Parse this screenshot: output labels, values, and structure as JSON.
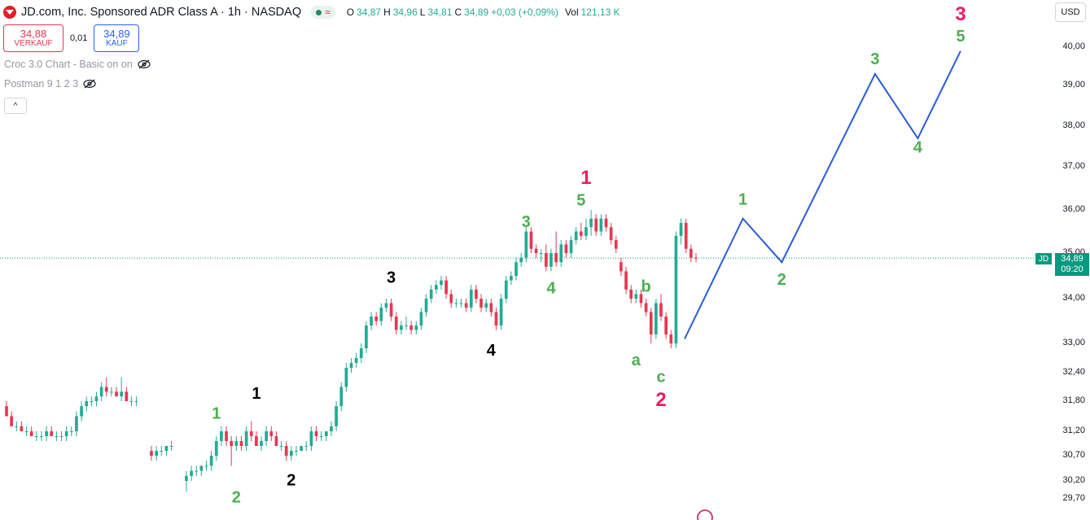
{
  "header": {
    "title": "JD.com, Inc. Sponsored ADR Class A · 1h · NASDAQ",
    "approx_symbol": "≈",
    "ohlc": [
      {
        "k": "O",
        "v": "34,87"
      },
      {
        "k": "H",
        "v": "34,96"
      },
      {
        "k": "L",
        "v": "34,81"
      },
      {
        "k": "C",
        "v": "34,89"
      }
    ],
    "change": "+0,03 (+0,09%)",
    "volume_label": "Vol",
    "volume_value": "121,13 K"
  },
  "trade": {
    "sell_price": "34,88",
    "sell_label": "VERKAUF",
    "spread": "0,01",
    "buy_price": "34,89",
    "buy_label": "KAUF"
  },
  "indicators": [
    {
      "name": "Croc 3.0 Chart - Basic on on"
    },
    {
      "name": "Postman 9 1 2 3"
    }
  ],
  "collapse_symbol": "^",
  "currency": "USD",
  "price_tag": {
    "symbol": "JD",
    "price": "34,89",
    "countdown": "09:20"
  },
  "colors": {
    "up": "#22ab94",
    "down": "#e53850",
    "projection": "#2a5bd7",
    "wave_green": "#4caf50",
    "wave_pink": "#e91e63",
    "wave_black": "#000000",
    "current_price_line": "#089981"
  },
  "chart_data": {
    "type": "candlestick",
    "ylim": [
      29.7,
      40.6
    ],
    "y_tick_labels": [
      "29,70",
      "30,20",
      "30,70",
      "31,20",
      "31,80",
      "32,40",
      "33,00",
      "34,00",
      "35,00",
      "36,00",
      "37,00",
      "38,00",
      "39,00",
      "40,00"
    ],
    "y_ticks": [
      29.7,
      30.2,
      30.7,
      31.2,
      31.8,
      32.4,
      33.0,
      34.0,
      35.0,
      36.0,
      37.0,
      38.0,
      39.0,
      40.0
    ],
    "current_price": 34.89,
    "candles": [
      [
        31.7,
        31.8,
        31.5,
        31.5
      ],
      [
        31.5,
        31.6,
        31.3,
        31.3
      ],
      [
        31.3,
        31.4,
        31.2,
        31.3
      ],
      [
        31.3,
        31.4,
        31.2,
        31.2
      ],
      [
        31.2,
        31.3,
        31.1,
        31.2
      ],
      [
        31.2,
        31.3,
        31.1,
        31.1
      ],
      [
        31.1,
        31.2,
        31.0,
        31.1
      ],
      [
        31.1,
        31.2,
        31.0,
        31.1
      ],
      [
        31.1,
        31.3,
        31.0,
        31.2
      ],
      [
        31.2,
        31.3,
        31.1,
        31.1
      ],
      [
        31.1,
        31.2,
        31.0,
        31.1
      ],
      [
        31.1,
        31.2,
        31.0,
        31.1
      ],
      [
        31.1,
        31.3,
        31.0,
        31.2
      ],
      [
        31.2,
        31.3,
        31.1,
        31.2
      ],
      [
        31.2,
        31.6,
        31.1,
        31.5
      ],
      [
        31.5,
        31.8,
        31.4,
        31.7
      ],
      [
        31.7,
        31.9,
        31.6,
        31.8
      ],
      [
        31.8,
        31.9,
        31.7,
        31.8
      ],
      [
        31.8,
        32.0,
        31.7,
        31.9
      ],
      [
        31.9,
        32.2,
        31.8,
        32.1
      ],
      [
        32.1,
        32.3,
        31.9,
        32.0
      ],
      [
        32.0,
        32.1,
        31.9,
        32.0
      ],
      [
        32.0,
        32.1,
        31.9,
        31.9
      ],
      [
        31.9,
        32.3,
        31.8,
        32.0
      ],
      [
        32.0,
        32.1,
        31.8,
        31.8
      ],
      [
        31.8,
        31.9,
        31.7,
        31.8
      ],
      [
        31.8,
        31.9,
        31.7,
        31.8
      ],
      [
        30.8,
        30.9,
        30.6,
        30.7
      ],
      [
        30.7,
        30.9,
        30.6,
        30.8
      ],
      [
        30.8,
        30.9,
        30.7,
        30.8
      ],
      [
        30.8,
        30.9,
        30.7,
        30.9
      ],
      [
        30.9,
        31.0,
        30.8,
        30.9
      ],
      [
        30.2,
        30.4,
        29.9,
        30.3
      ],
      [
        30.3,
        30.5,
        30.2,
        30.4
      ],
      [
        30.4,
        30.5,
        30.3,
        30.4
      ],
      [
        30.4,
        30.5,
        30.3,
        30.5
      ],
      [
        30.5,
        30.6,
        30.4,
        30.5
      ],
      [
        30.5,
        30.8,
        30.4,
        30.7
      ],
      [
        30.7,
        31.1,
        30.6,
        31.0
      ],
      [
        31.0,
        31.3,
        30.9,
        31.2
      ],
      [
        31.2,
        31.3,
        30.9,
        31.0
      ],
      [
        31.0,
        31.1,
        30.5,
        30.9
      ],
      [
        30.9,
        31.1,
        30.8,
        31.0
      ],
      [
        31.0,
        31.1,
        30.8,
        30.9
      ],
      [
        30.9,
        31.3,
        30.8,
        31.2
      ],
      [
        31.2,
        31.4,
        31.0,
        31.1
      ],
      [
        31.1,
        31.2,
        30.9,
        30.9
      ],
      [
        30.9,
        31.1,
        30.8,
        31.0
      ],
      [
        31.0,
        31.3,
        30.9,
        31.2
      ],
      [
        31.2,
        31.3,
        31.0,
        31.1
      ],
      [
        31.1,
        31.2,
        30.9,
        30.9
      ],
      [
        30.9,
        31.0,
        30.8,
        30.9
      ],
      [
        30.9,
        31.0,
        30.6,
        30.7
      ],
      [
        30.7,
        30.9,
        30.6,
        30.8
      ],
      [
        30.8,
        30.9,
        30.7,
        30.8
      ],
      [
        30.8,
        30.9,
        30.8,
        30.9
      ],
      [
        30.9,
        31.0,
        30.8,
        30.9
      ],
      [
        30.9,
        31.3,
        30.8,
        31.2
      ],
      [
        31.2,
        31.3,
        31.0,
        31.1
      ],
      [
        31.1,
        31.2,
        31.0,
        31.1
      ],
      [
        31.1,
        31.2,
        31.0,
        31.2
      ],
      [
        31.2,
        31.4,
        31.1,
        31.3
      ],
      [
        31.3,
        31.8,
        31.2,
        31.7
      ],
      [
        31.7,
        32.2,
        31.6,
        32.1
      ],
      [
        32.1,
        32.6,
        32.0,
        32.5
      ],
      [
        32.5,
        32.7,
        32.4,
        32.6
      ],
      [
        32.6,
        32.8,
        32.5,
        32.7
      ],
      [
        32.7,
        33.0,
        32.6,
        32.9
      ],
      [
        32.9,
        33.5,
        32.8,
        33.4
      ],
      [
        33.4,
        33.7,
        33.3,
        33.6
      ],
      [
        33.6,
        33.7,
        33.4,
        33.5
      ],
      [
        33.5,
        33.9,
        33.4,
        33.8
      ],
      [
        33.8,
        34.0,
        33.7,
        33.9
      ],
      [
        33.9,
        34.0,
        33.5,
        33.6
      ],
      [
        33.6,
        33.7,
        33.2,
        33.3
      ],
      [
        33.3,
        33.5,
        33.2,
        33.4
      ],
      [
        33.4,
        33.6,
        33.3,
        33.4
      ],
      [
        33.4,
        33.5,
        33.2,
        33.3
      ],
      [
        33.3,
        33.5,
        33.2,
        33.4
      ],
      [
        33.4,
        33.8,
        33.3,
        33.7
      ],
      [
        33.7,
        34.1,
        33.6,
        34.0
      ],
      [
        34.0,
        34.3,
        33.9,
        34.2
      ],
      [
        34.2,
        34.4,
        34.1,
        34.3
      ],
      [
        34.3,
        34.5,
        34.2,
        34.4
      ],
      [
        34.4,
        34.5,
        34.0,
        34.1
      ],
      [
        34.1,
        34.2,
        33.8,
        33.9
      ],
      [
        33.9,
        34.0,
        33.8,
        33.9
      ],
      [
        33.9,
        34.0,
        33.8,
        33.9
      ],
      [
        33.9,
        34.0,
        33.7,
        33.8
      ],
      [
        33.8,
        34.3,
        33.7,
        34.2
      ],
      [
        34.2,
        34.3,
        33.9,
        34.0
      ],
      [
        34.0,
        34.1,
        33.7,
        33.8
      ],
      [
        33.8,
        34.0,
        33.7,
        33.9
      ],
      [
        33.9,
        34.0,
        33.6,
        33.7
      ],
      [
        33.7,
        33.8,
        33.3,
        33.4
      ],
      [
        33.4,
        34.1,
        33.3,
        34.0
      ],
      [
        34.0,
        34.5,
        33.9,
        34.4
      ],
      [
        34.4,
        34.6,
        34.3,
        34.5
      ],
      [
        34.5,
        34.9,
        34.4,
        34.8
      ],
      [
        34.8,
        35.0,
        34.7,
        34.9
      ],
      [
        34.9,
        35.6,
        34.8,
        35.5
      ],
      [
        35.5,
        35.6,
        35.0,
        35.1
      ],
      [
        35.1,
        35.2,
        34.9,
        35.0
      ],
      [
        35.0,
        35.1,
        34.8,
        35.0
      ],
      [
        35.0,
        35.2,
        34.6,
        34.7
      ],
      [
        34.7,
        35.1,
        34.6,
        35.0
      ],
      [
        35.0,
        35.5,
        34.7,
        34.8
      ],
      [
        34.8,
        35.3,
        34.7,
        35.2
      ],
      [
        35.2,
        35.3,
        34.9,
        35.0
      ],
      [
        35.0,
        35.4,
        34.9,
        35.3
      ],
      [
        35.3,
        35.6,
        35.2,
        35.5
      ],
      [
        35.5,
        35.7,
        35.3,
        35.4
      ],
      [
        35.4,
        35.8,
        35.3,
        35.6
      ],
      [
        35.6,
        36.0,
        35.4,
        35.8
      ],
      [
        35.8,
        35.9,
        35.4,
        35.5
      ],
      [
        35.5,
        35.9,
        35.4,
        35.8
      ],
      [
        35.8,
        35.9,
        35.5,
        35.6
      ],
      [
        35.6,
        35.7,
        35.2,
        35.3
      ],
      [
        35.3,
        35.4,
        35.0,
        35.1
      ],
      [
        34.8,
        34.9,
        34.5,
        34.6
      ],
      [
        34.6,
        34.7,
        34.1,
        34.2
      ],
      [
        34.2,
        34.3,
        33.9,
        34.0
      ],
      [
        34.0,
        34.2,
        33.9,
        34.1
      ],
      [
        34.1,
        34.2,
        33.8,
        33.9
      ],
      [
        33.9,
        34.0,
        33.6,
        33.7
      ],
      [
        33.7,
        33.8,
        33.0,
        33.2
      ],
      [
        33.2,
        34.0,
        33.1,
        33.9
      ],
      [
        33.9,
        34.1,
        33.5,
        33.6
      ],
      [
        33.6,
        33.7,
        33.1,
        33.2
      ],
      [
        33.2,
        33.3,
        32.9,
        33.0
      ],
      [
        33.0,
        35.5,
        32.9,
        35.4
      ],
      [
        35.4,
        35.8,
        35.2,
        35.7
      ],
      [
        35.7,
        35.8,
        35.0,
        35.1
      ],
      [
        35.1,
        35.2,
        34.8,
        34.9
      ],
      [
        34.9,
        35.0,
        34.8,
        34.89
      ]
    ],
    "projection": {
      "points": [
        [
          0,
          33.1
        ],
        [
          75,
          35.8
        ],
        [
          125,
          34.8
        ],
        [
          245,
          39.3
        ],
        [
          300,
          37.7
        ],
        [
          355,
          39.9
        ]
      ],
      "spacing_note": "projection x measured in candles from last candle"
    },
    "wave_labels": [
      {
        "text": "1",
        "color": "green",
        "price": 31.45,
        "candle": 38
      },
      {
        "text": "2",
        "color": "green",
        "price": 29.6,
        "candle": 42
      },
      {
        "text": "1",
        "color": "black",
        "price": 31.85,
        "candle": 46
      },
      {
        "text": "2",
        "color": "black",
        "price": 30.08,
        "candle": 53
      },
      {
        "text": "3",
        "color": "black",
        "price": 34.35,
        "candle": 73
      },
      {
        "text": "4",
        "color": "black",
        "price": 32.75,
        "candle": 93
      },
      {
        "text": "3",
        "color": "green",
        "price": 35.6,
        "candle": 100
      },
      {
        "text": "4",
        "color": "green",
        "price": 34.12,
        "candle": 105
      },
      {
        "text": "1",
        "color": "pink",
        "price": 36.6,
        "candle": 112
      },
      {
        "text": "5",
        "color": "green",
        "price": 36.1,
        "candle": 111
      },
      {
        "text": "b",
        "color": "green",
        "price": 34.15,
        "candle": 124
      },
      {
        "text": "a",
        "color": "green",
        "price": 32.55,
        "candle": 122
      },
      {
        "text": "c",
        "color": "green",
        "price": 32.2,
        "candle": 127
      },
      {
        "text": "2",
        "color": "pink",
        "price": 31.7,
        "candle": 127
      },
      {
        "text": "1",
        "color": "green",
        "price": 36.12,
        "proj": 75
      },
      {
        "text": "2",
        "color": "green",
        "price": 34.3,
        "proj": 125
      },
      {
        "text": "3",
        "color": "green",
        "price": 39.55,
        "proj": 245
      },
      {
        "text": "4",
        "color": "green",
        "price": 37.35,
        "proj": 300
      },
      {
        "text": "5",
        "color": "green",
        "price": 40.15,
        "proj": 355
      },
      {
        "text": "3",
        "color": "pink",
        "price": 40.7,
        "proj": 355
      }
    ]
  }
}
